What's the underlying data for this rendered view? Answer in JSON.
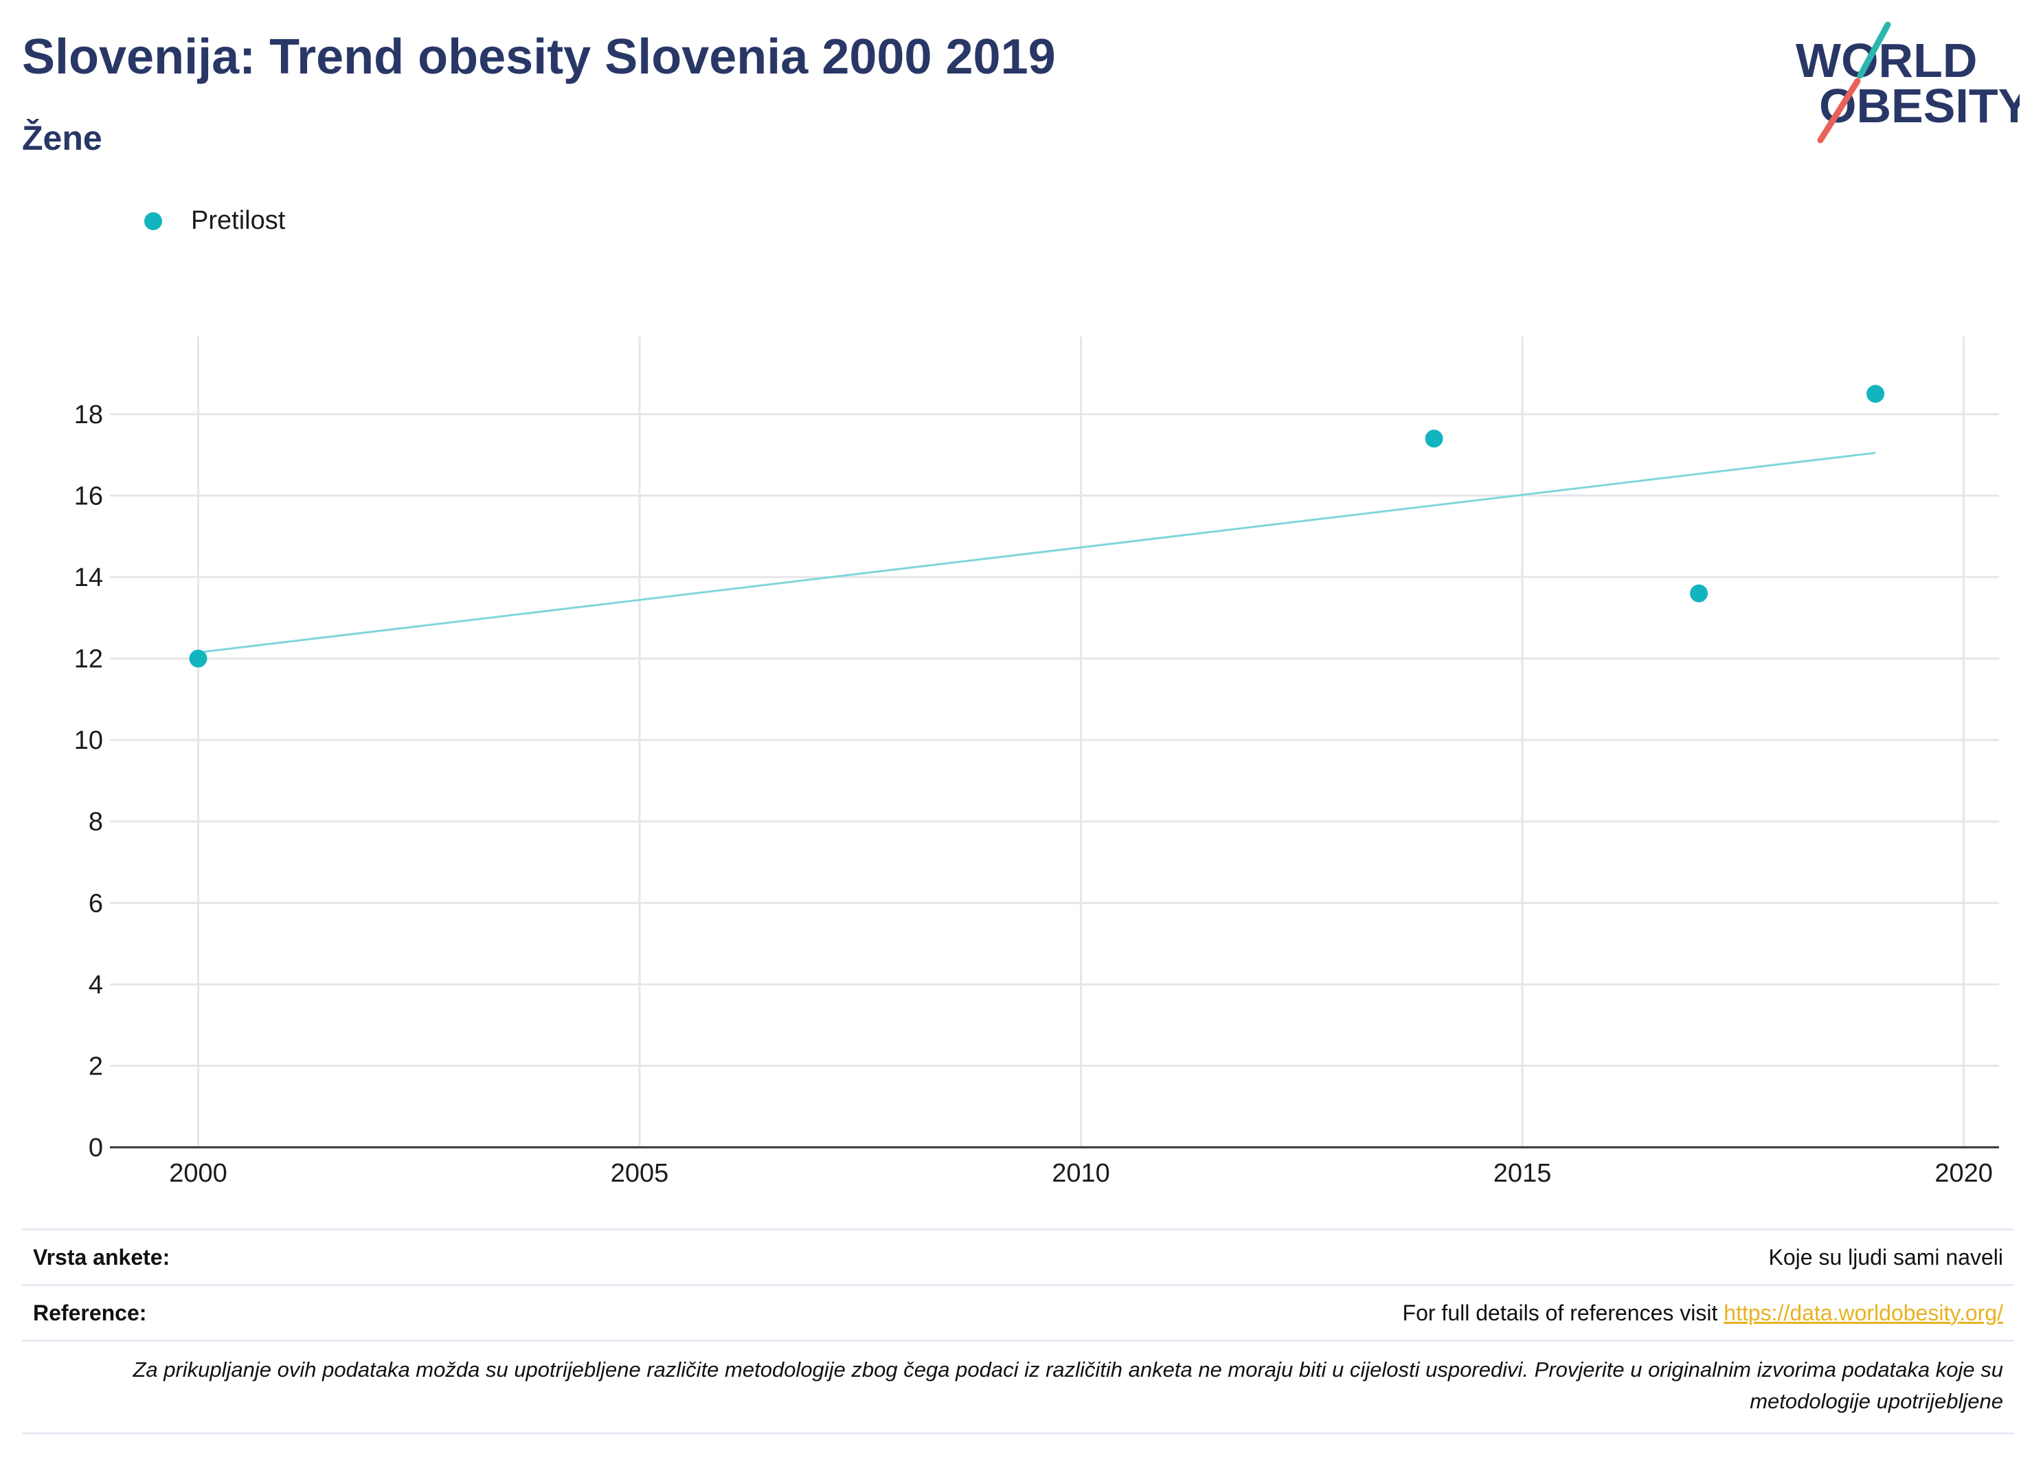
{
  "header": {
    "title": "Slovenija: Trend obesity Slovenia 2000 2019",
    "subtitle": "Žene",
    "logo_line1": "WORLD",
    "logo_line2": "OBESITY"
  },
  "legend": {
    "label": "Pretilost",
    "color": "#12b4be"
  },
  "colors": {
    "points": "#12b4be",
    "trend": "#7fd6da",
    "grid": "#e6e6ea",
    "title": "#283766",
    "logo_teal": "#2bb6ad",
    "logo_red": "#e8625a"
  },
  "chart_data": {
    "type": "scatter",
    "title": "",
    "xlabel": "",
    "ylabel": "",
    "xlim": [
      1999,
      2020.4
    ],
    "ylim": [
      0,
      19.6
    ],
    "x_ticks": [
      2000,
      2005,
      2010,
      2015,
      2020
    ],
    "y_ticks": [
      0,
      2,
      4,
      6,
      8,
      10,
      12,
      14,
      16,
      18
    ],
    "grid": true,
    "legend_position": "top-left",
    "series": [
      {
        "name": "Pretilost",
        "x": [
          2000,
          2014,
          2017,
          2019
        ],
        "values": [
          12.0,
          17.4,
          13.6,
          18.5
        ]
      }
    ],
    "trendline": {
      "x": [
        2000,
        2019
      ],
      "values": [
        12.15,
        17.05
      ]
    }
  },
  "footer": {
    "survey_key": "Vrsta ankete:",
    "survey_value": "Koje su ljudi sami naveli",
    "ref_key": "Reference:",
    "ref_text": "For full details of references visit ",
    "ref_link": "https://data.worldobesity.org/",
    "note": "Za prikupljanje ovih podataka možda su upotrijebljene različite metodologije zbog čega podaci iz različitih anketa ne moraju biti u cijelosti usporedivi. Provjerite u originalnim izvorima podataka koje su metodologije upotrijebljene"
  }
}
